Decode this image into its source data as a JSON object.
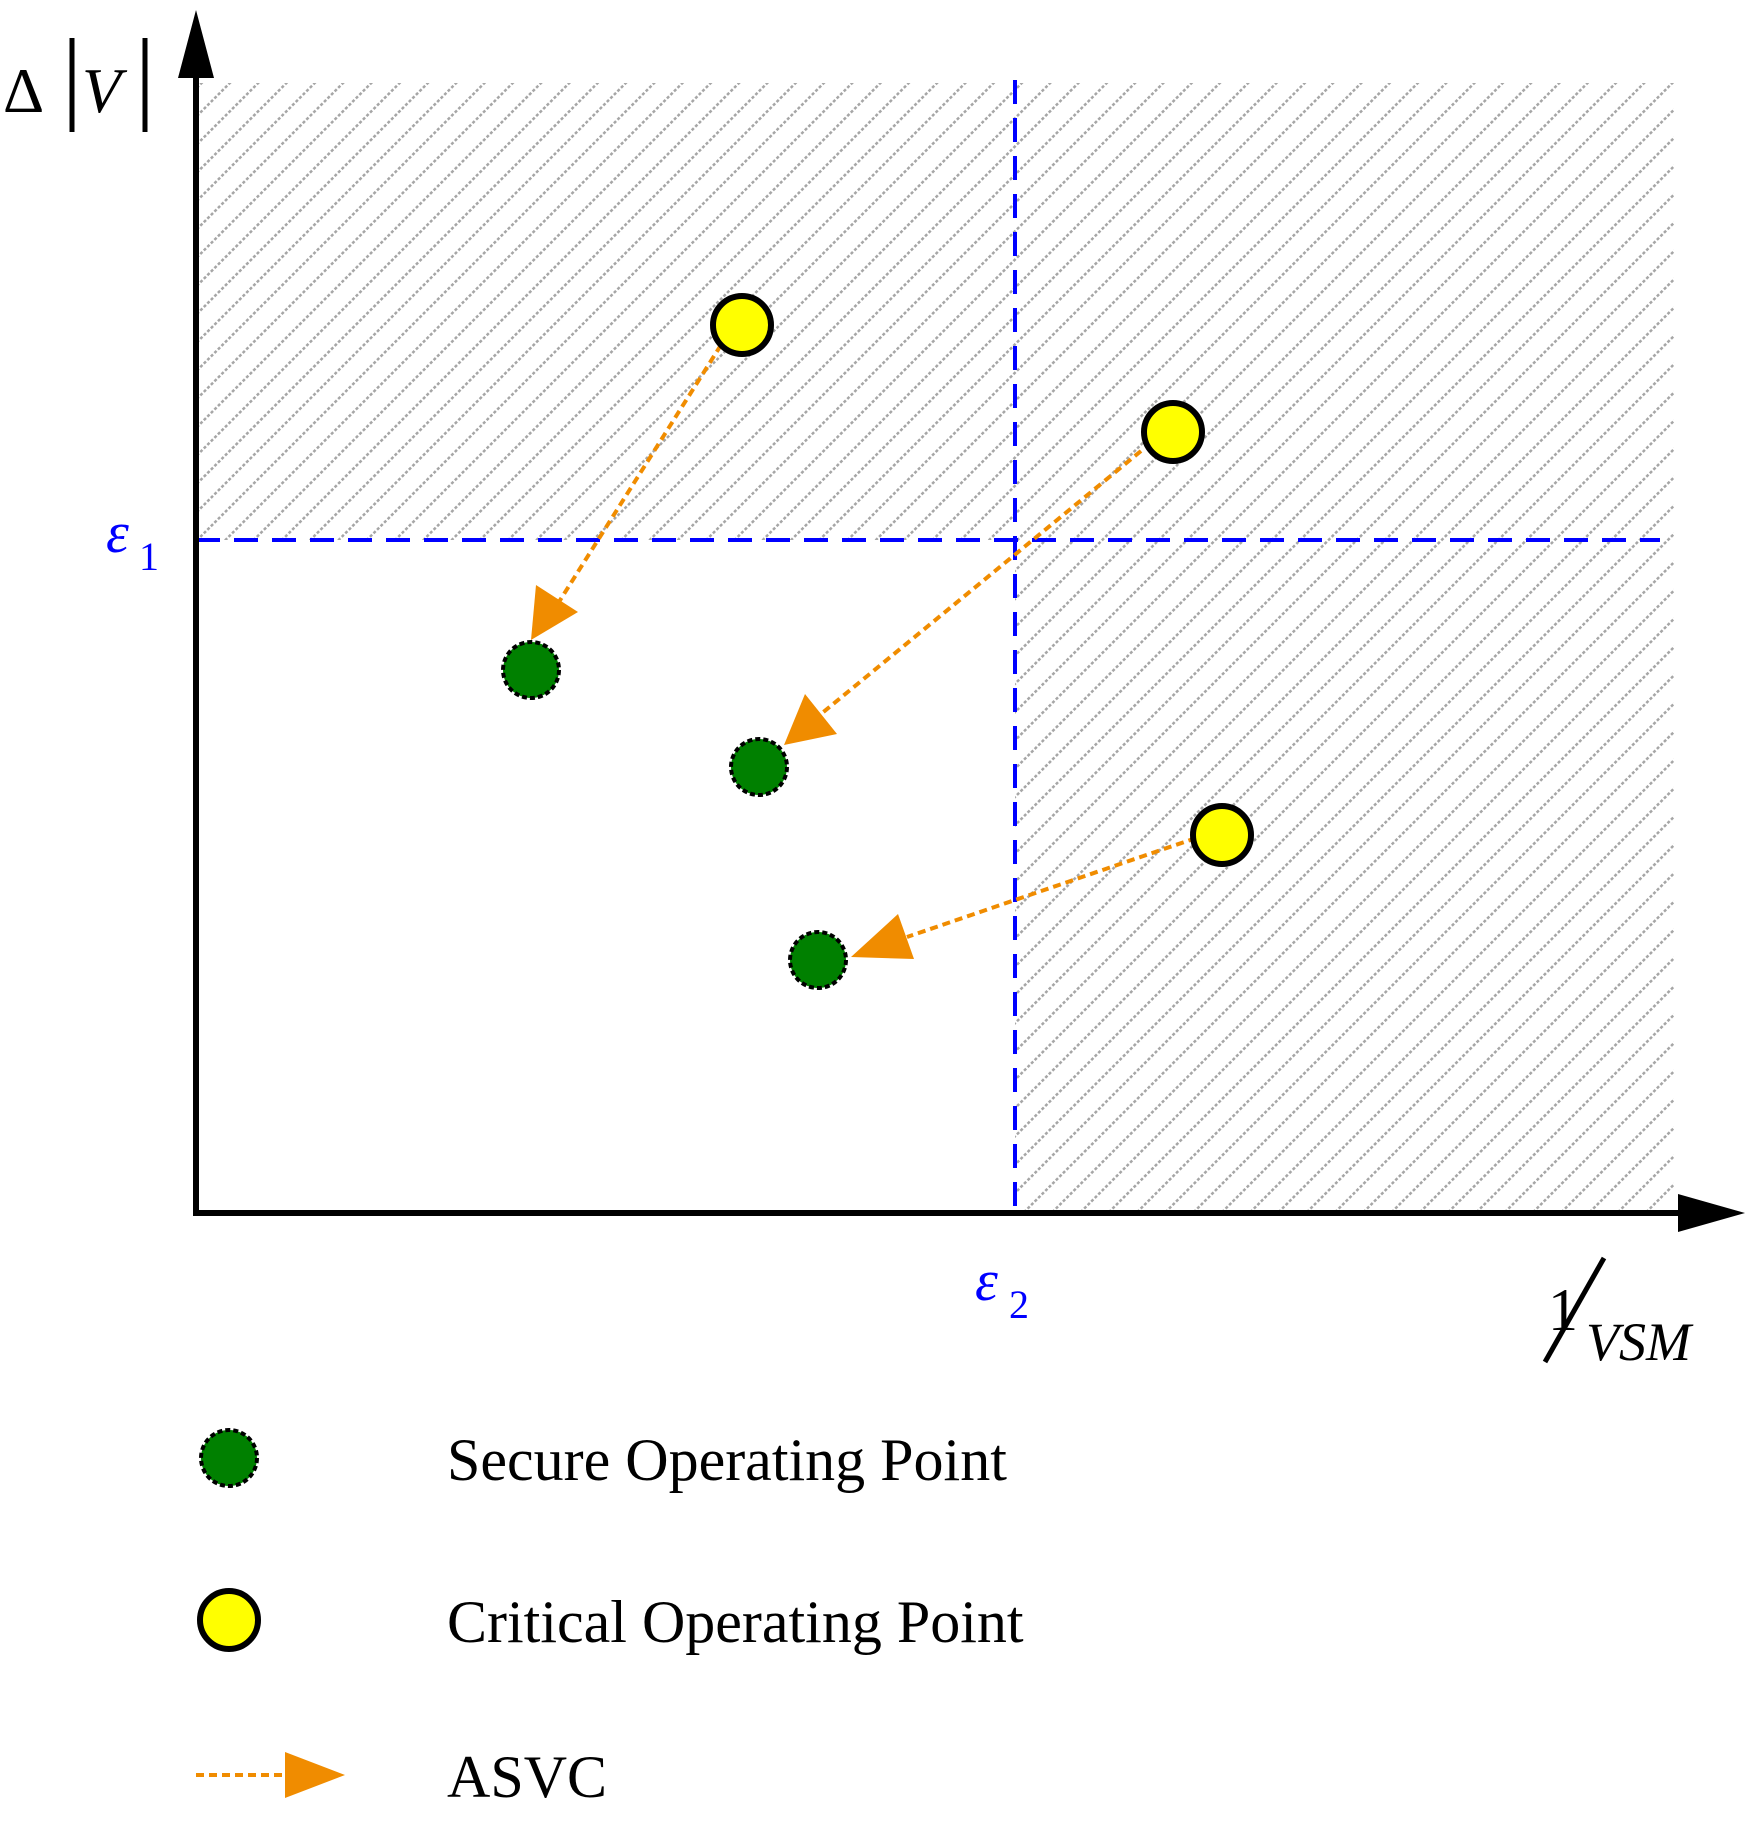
{
  "axes": {
    "y_label": {
      "delta": "Δ",
      "var": "V"
    },
    "x_label": {
      "numerator": "1",
      "denominator": "VSM"
    }
  },
  "thresholds": {
    "eps1": {
      "symbol": "ε",
      "sub": "1"
    },
    "eps2": {
      "symbol": "ε",
      "sub": "2"
    }
  },
  "legend": {
    "secure": "Secure Operating Point",
    "critical": "Critical Operating Point",
    "asvc": "ASVC"
  },
  "colors": {
    "hatch": "#a6a6a6",
    "threshold_line": "#0000ff",
    "secure_fill": "#008000",
    "critical_fill": "#ffff00",
    "arrow": "#f08c00",
    "axis": "#000000"
  }
}
